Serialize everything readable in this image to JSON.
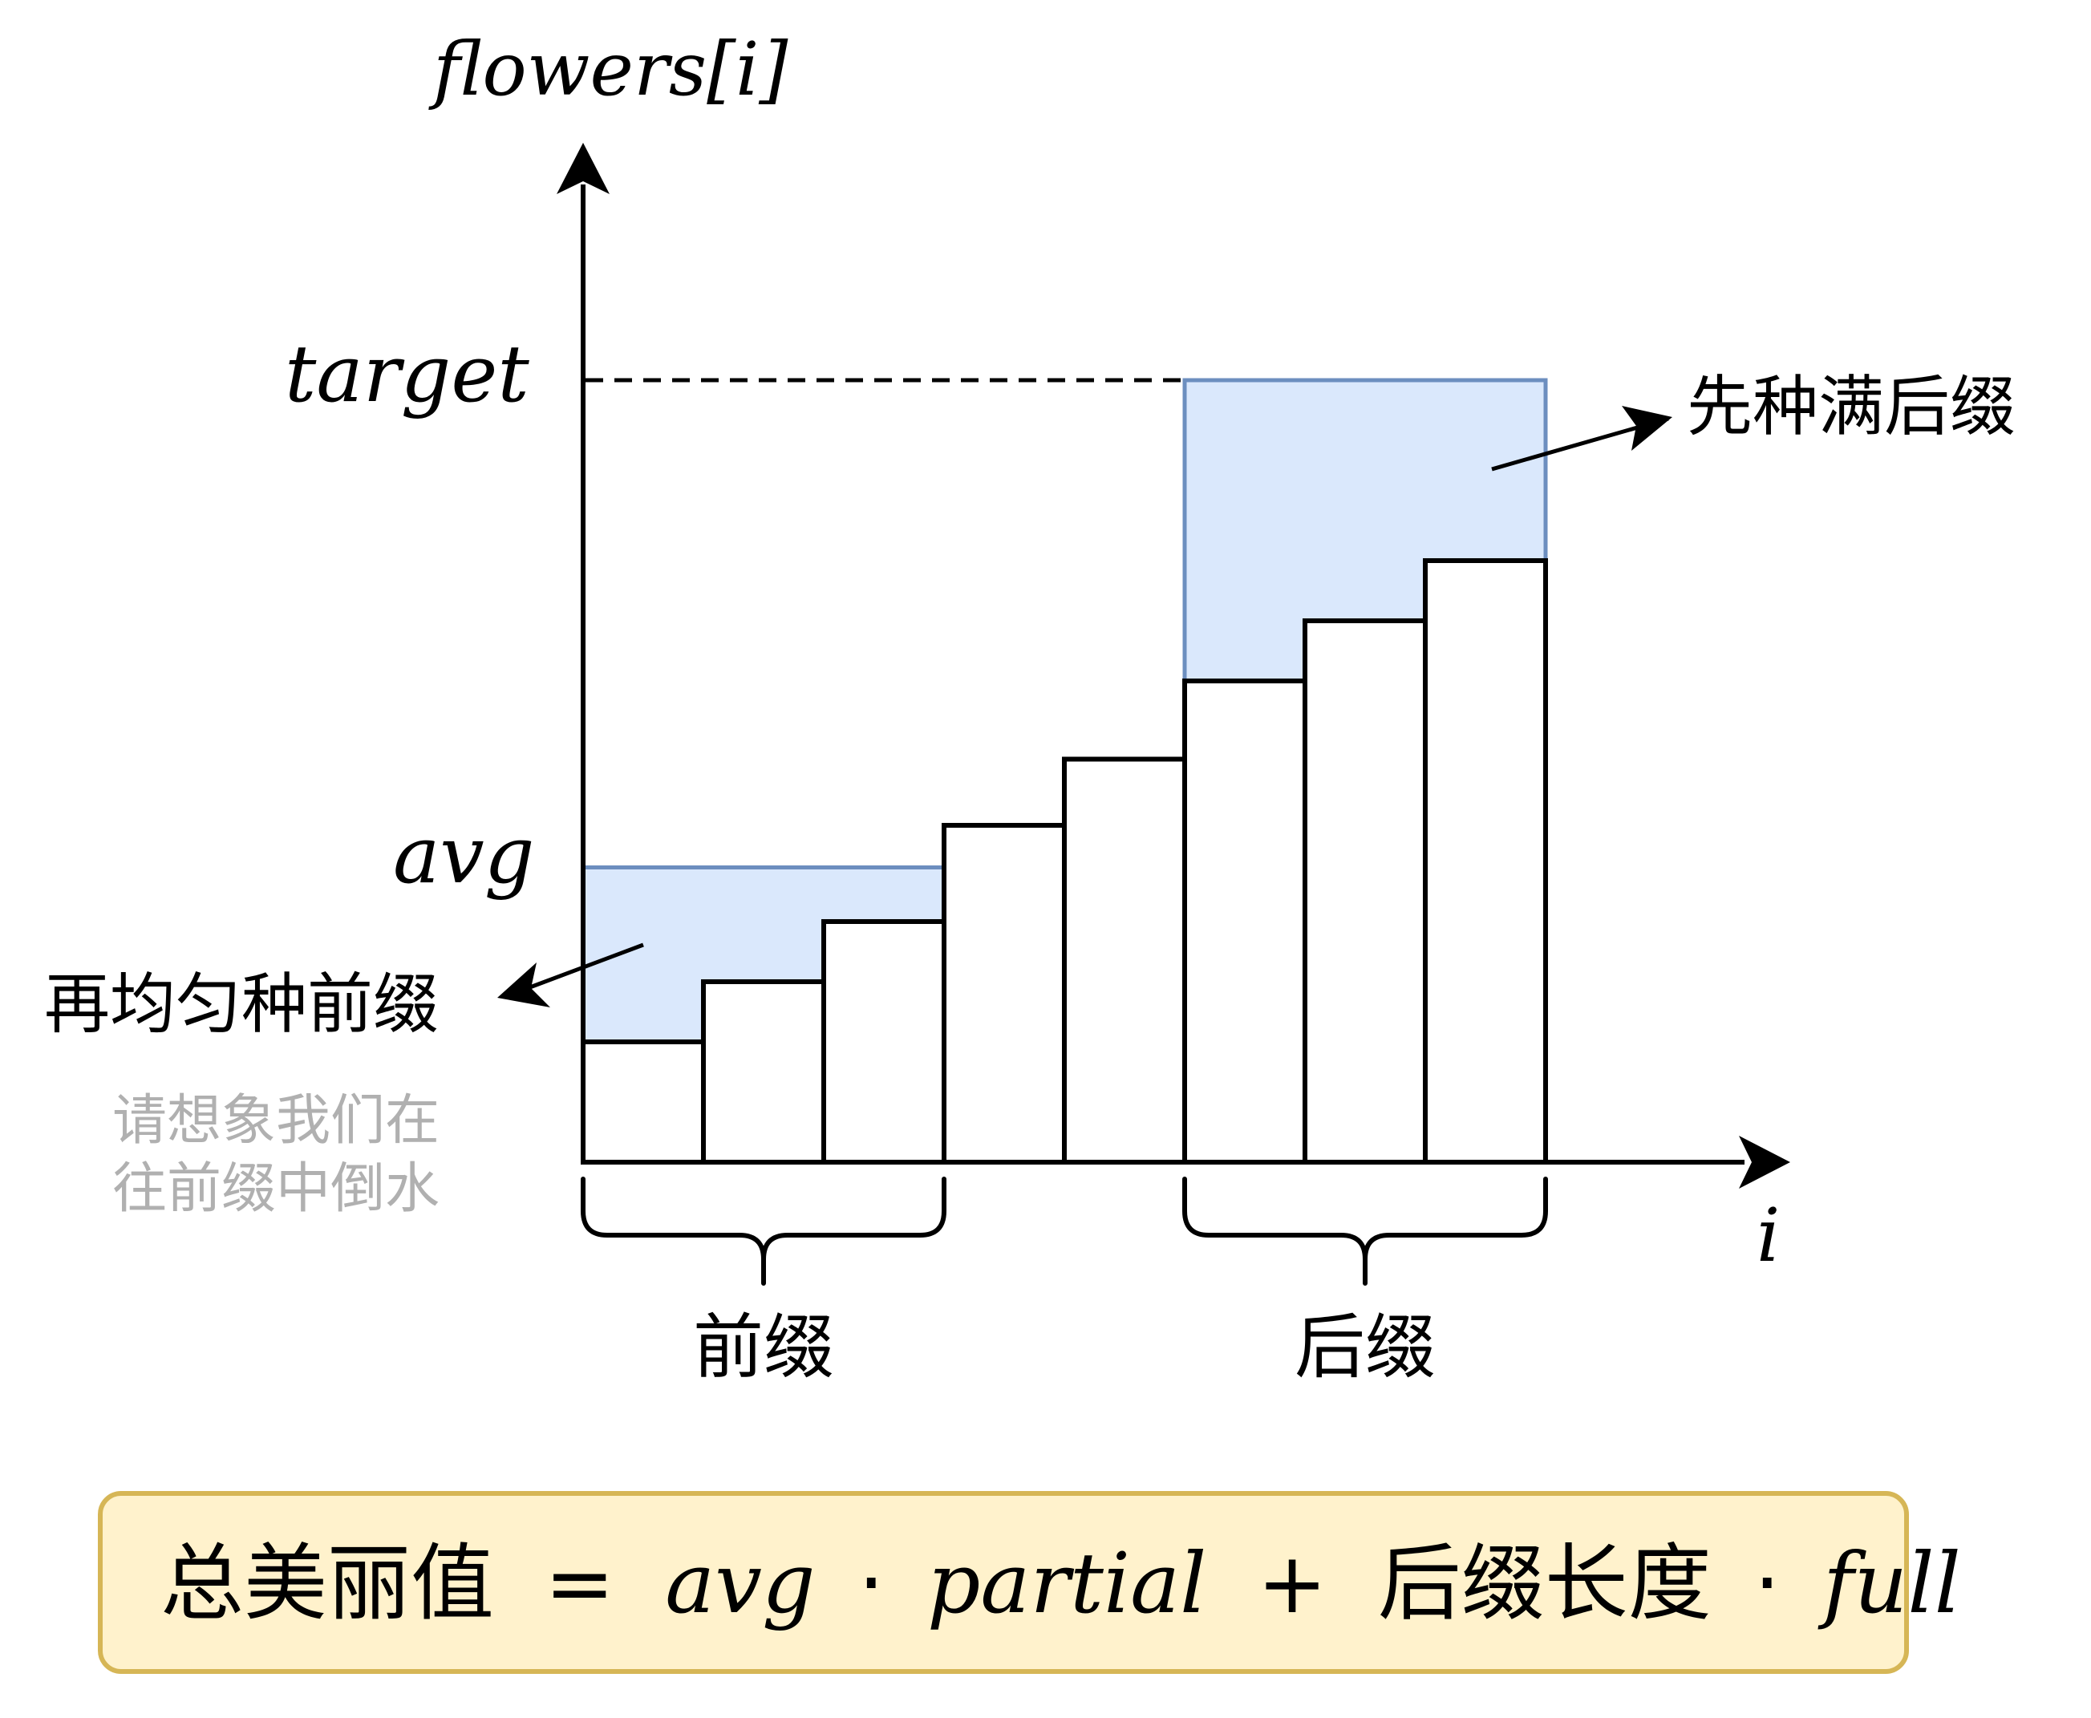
{
  "diagram": {
    "y_axis_label": "flowers[i]",
    "x_axis_label": "i",
    "target_label": "target",
    "avg_label": "avg",
    "suffix_note": "先种满后缀",
    "prefix_note": "再均匀种前缀",
    "hint_line1": "请想象我们在",
    "hint_line2": "往前缀中倒水",
    "prefix_label": "前缀",
    "suffix_label": "后缀",
    "formula": {
      "lhs": "总美丽值",
      "eq": "=",
      "avg": "avg",
      "dot1": "·",
      "partial": "partial",
      "plus": "+",
      "suffix_len": "后缀长度",
      "dot2": "·",
      "full": "full"
    },
    "colors": {
      "fill_blue": "#dae8fc",
      "stroke_blue": "#6c8ebf",
      "formula_fill": "#fff2cc",
      "formula_stroke": "#d6b656",
      "hint_gray": "#b0b0b0"
    }
  },
  "chart_data": {
    "type": "bar",
    "bar_count": 8,
    "values": [
      1,
      1.5,
      2,
      2.8,
      3.35,
      4,
      4.5,
      5
    ],
    "target": 6.5,
    "avg": 2.45,
    "prefix_indices": [
      0,
      1,
      2
    ],
    "suffix_indices": [
      5,
      6,
      7
    ]
  }
}
